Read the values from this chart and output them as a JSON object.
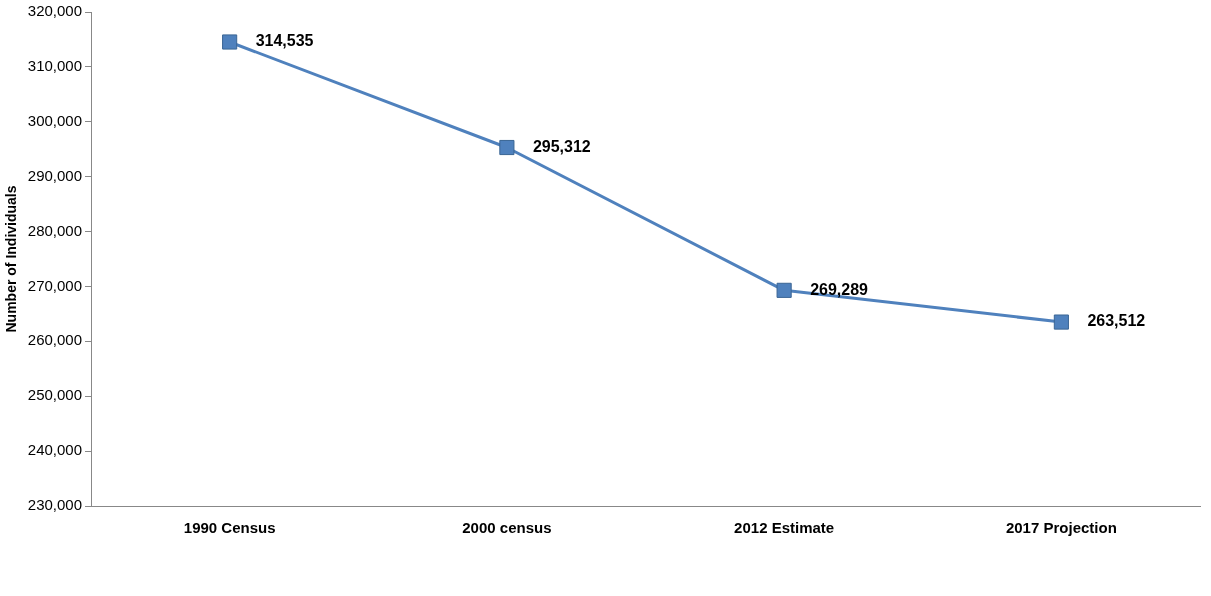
{
  "chart_data": {
    "type": "line",
    "ylabel": "Number of Individuals",
    "categories": [
      "1990 Census",
      "2000 census",
      "2012 Estimate",
      "2017 Projection"
    ],
    "series": [
      {
        "color": "#4f81bd",
        "values": [
          314535,
          295312,
          269289,
          263512
        ],
        "value_labels": [
          "314,535",
          "295,312",
          "269,289",
          "263,512"
        ]
      }
    ],
    "ylim": [
      230000,
      320000
    ],
    "yticks": [
      {
        "value": 230000,
        "label": "230,000"
      },
      {
        "value": 240000,
        "label": "240,000"
      },
      {
        "value": 250000,
        "label": "250,000"
      },
      {
        "value": 260000,
        "label": "260,000"
      },
      {
        "value": 270000,
        "label": "270,000"
      },
      {
        "value": 280000,
        "label": "280,000"
      },
      {
        "value": 290000,
        "label": "290,000"
      },
      {
        "value": 300000,
        "label": "300,000"
      },
      {
        "value": 310000,
        "label": "310,000"
      },
      {
        "value": 320000,
        "label": "320,000"
      }
    ],
    "grid": false,
    "legend": false,
    "marker": "square",
    "line_style": "solid"
  }
}
